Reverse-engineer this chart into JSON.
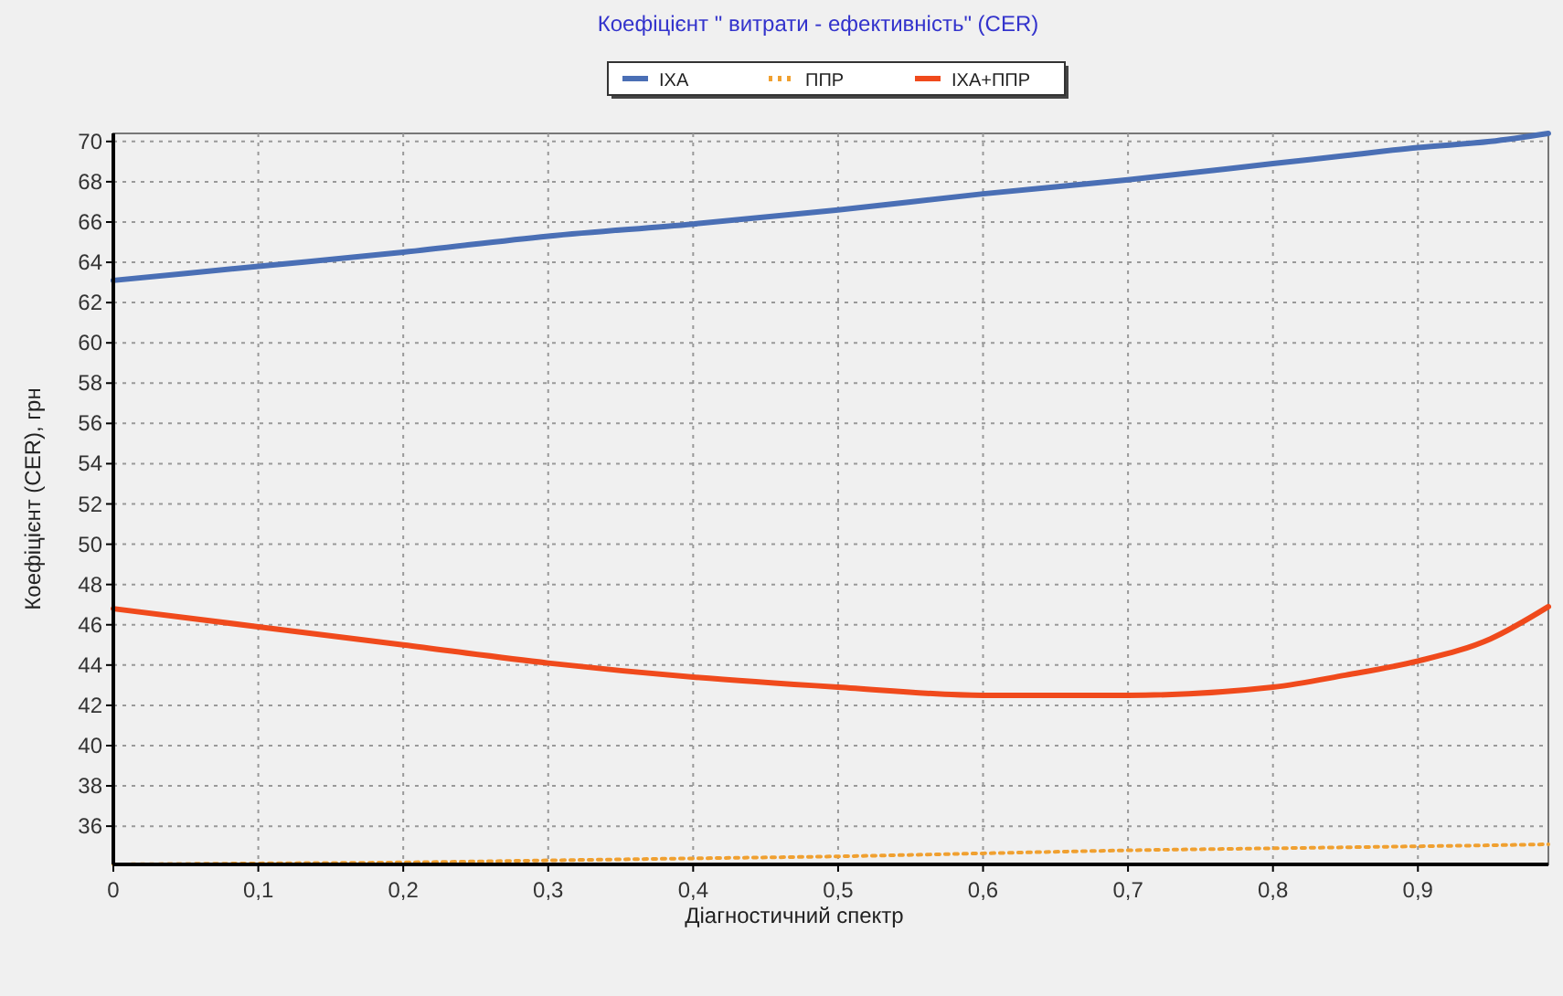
{
  "chart_data": {
    "type": "line",
    "title": "Коефіцієнт \" витрати - ефективність\" (CER)",
    "xlabel": "Діагностичний спектр",
    "ylabel": "Коефіцієнт (CER), грн",
    "x": [
      0,
      0.1,
      0.2,
      0.3,
      0.4,
      0.5,
      0.6,
      0.7,
      0.8,
      0.85,
      0.9,
      0.95,
      0.99
    ],
    "series": [
      {
        "name": "ІХА",
        "color": "#4a6fb5",
        "line_style": "solid",
        "values": [
          63.1,
          63.8,
          64.5,
          65.3,
          65.9,
          66.6,
          67.4,
          68.1,
          68.9,
          69.3,
          69.7,
          70.0,
          70.4
        ]
      },
      {
        "name": "ППР",
        "color": "#f0a030",
        "line_style": "dotted",
        "values": [
          34.1,
          34.15,
          34.2,
          34.3,
          34.4,
          34.5,
          34.65,
          34.8,
          34.9,
          34.95,
          35.0,
          35.05,
          35.1
        ]
      },
      {
        "name": "ІХА+ППР",
        "color": "#f04a1c",
        "line_style": "solid",
        "values": [
          46.8,
          45.9,
          45.0,
          44.1,
          43.4,
          42.9,
          42.5,
          42.5,
          42.9,
          43.5,
          44.2,
          45.3,
          46.9
        ]
      }
    ],
    "xlim": [
      0,
      0.99
    ],
    "ylim": [
      34.1,
      70.4
    ],
    "xticks": [
      0,
      {
        "value": 0.1,
        "label": "0,1"
      },
      {
        "value": 0.2,
        "label": "0,2"
      },
      {
        "value": 0.3,
        "label": "0,3"
      },
      {
        "value": 0.4,
        "label": "0,4"
      },
      {
        "value": 0.5,
        "label": "0,5"
      },
      {
        "value": 0.6,
        "label": "0,6"
      },
      {
        "value": 0.7,
        "label": "0,7"
      },
      {
        "value": 0.8,
        "label": "0,8"
      },
      {
        "value": 0.9,
        "label": "0,9"
      }
    ],
    "yticks": [
      36,
      38,
      40,
      42,
      44,
      46,
      48,
      50,
      52,
      54,
      56,
      58,
      60,
      62,
      64,
      66,
      68,
      70
    ],
    "grid": true,
    "legend": "top",
    "marker": "none"
  }
}
